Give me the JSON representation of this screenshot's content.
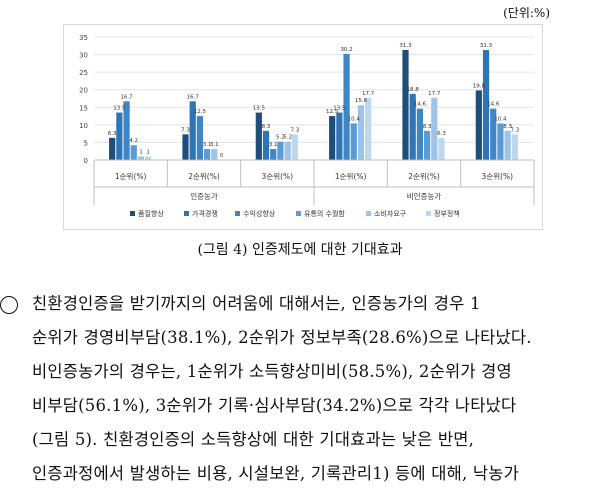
{
  "unit_label": "(단위:%)",
  "caption": "(그림 4) 인증제도에 대한 기대효과",
  "chart_data": {
    "type": "bar",
    "groups": [
      "인증농가",
      "비인증농가"
    ],
    "categories": [
      "1순위(%)",
      "2순위(%)",
      "3순위(%)",
      "1순위(%)",
      "2순위(%)",
      "3순위(%)"
    ],
    "ylim": [
      0,
      35
    ],
    "yticks": [
      0,
      5,
      10,
      15,
      20,
      25,
      30,
      35
    ],
    "grid": true,
    "legend_position": "bottom",
    "series": [
      {
        "name": "품질향상",
        "color": "#1f4e79",
        "values": [
          6.3,
          7.3,
          13.5,
          12.5,
          31.3,
          19.8
        ],
        "labels": [
          "6.3",
          "7.3",
          "13.5",
          "12.5",
          "31.3",
          "19.8"
        ]
      },
      {
        "name": "가격경쟁",
        "color": "#2e75b6",
        "values": [
          13.5,
          16.7,
          8.3,
          13.5,
          18.8,
          31.3
        ],
        "labels": [
          "13.5",
          "16.7",
          "8.3",
          "13.5",
          "18.8",
          "31.3"
        ]
      },
      {
        "name": "수익성향상",
        "color": "#3f86c4",
        "values": [
          16.7,
          12.5,
          3.1,
          30.2,
          14.6,
          14.6
        ],
        "labels": [
          "16.7",
          "12.5",
          "3.1",
          "30.2",
          "14.6",
          "14.6"
        ]
      },
      {
        "name": "유통의 수월함",
        "color": "#5b9bd5",
        "values": [
          4.2,
          3.1,
          5.2,
          10.4,
          8.3,
          10.4
        ],
        "labels": [
          "4.2",
          "3.1",
          "5.2",
          "10.4",
          "8.3",
          "10.4"
        ]
      },
      {
        "name": "소비자요구",
        "color": "#9dc3e6",
        "values": [
          1,
          3.1,
          5.2,
          15.6,
          17.7,
          8.3
        ],
        "labels": [
          "1",
          "3.1",
          "5.2",
          "15.6",
          "17.7",
          "8.3"
        ]
      },
      {
        "name": "정부정책",
        "color": "#bdd7ee",
        "values": [
          1,
          0,
          7.3,
          17.7,
          6.3,
          7.3
        ],
        "labels": [
          "1",
          "0",
          "7.3",
          "17.7",
          "6.3",
          "7.3"
        ]
      }
    ]
  },
  "paragraph": {
    "bullet": "○",
    "lines": [
      "친환경인증을 받기까지의 어려움에 대해서는, 인증농가의 경우 1",
      "순위가 경영비부담(38.1%), 2순위가 정보부족(28.6%)으로 나타났다.",
      "비인증농가의 경우는, 1순위가 소득향상미비(58.5%), 2순위가 경영",
      "비부담(56.1%), 3순위가 기록·심사부담(34.2%)으로 각각 나타났다",
      "(그림 5). 친환경인증의 소득향상에 대한 기대효과는 낮은 반면,",
      "인증과정에서 발생하는 비용, 시설보완, 기록관리1) 등에 대해, 낙농가"
    ]
  }
}
